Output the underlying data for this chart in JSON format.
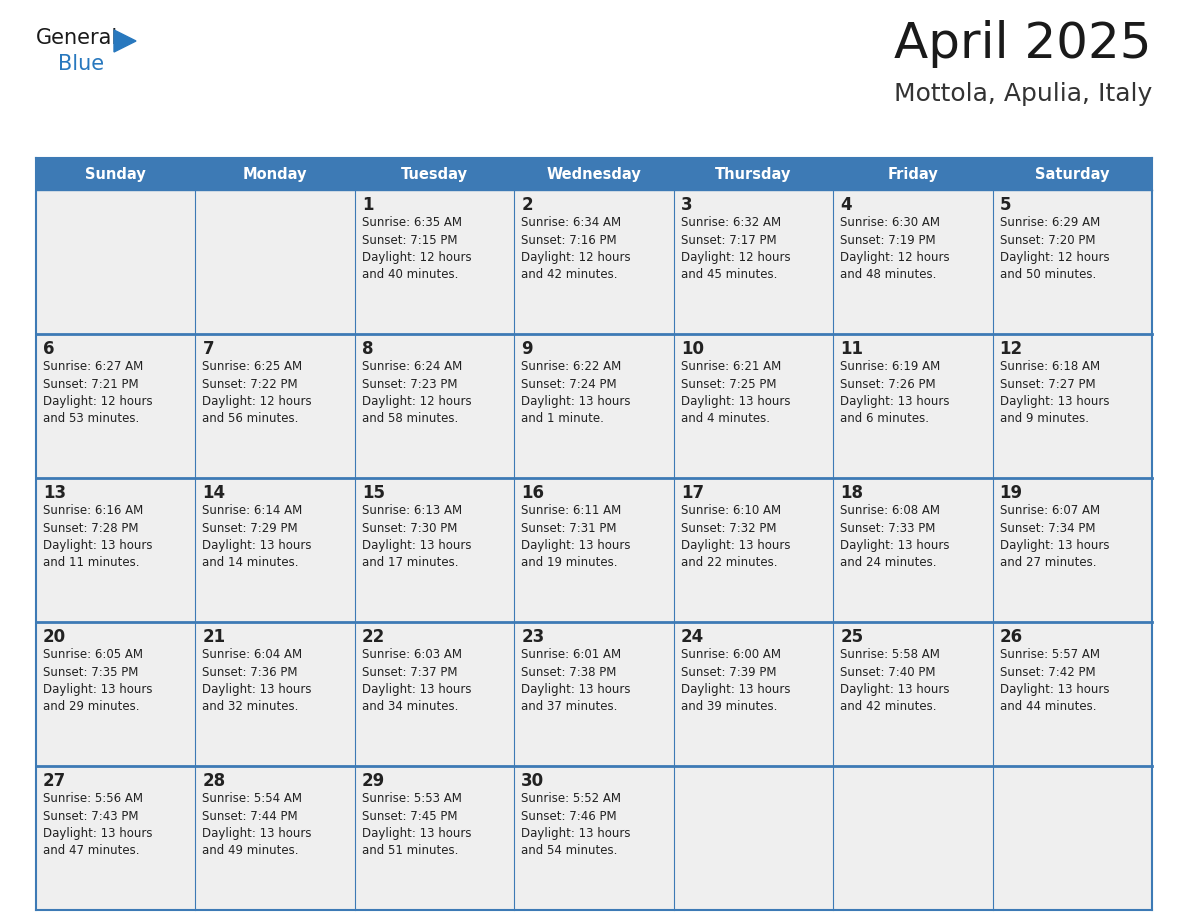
{
  "title": "April 2025",
  "subtitle": "Mottola, Apulia, Italy",
  "days_of_week": [
    "Sunday",
    "Monday",
    "Tuesday",
    "Wednesday",
    "Thursday",
    "Friday",
    "Saturday"
  ],
  "header_bg": "#3d7ab5",
  "header_text_color": "#FFFFFF",
  "cell_bg": "#efefef",
  "cell_border_color": "#3d7ab5",
  "title_color": "#1a1a1a",
  "subtitle_color": "#333333",
  "text_color": "#222222",
  "general_black": "#1a1a1a",
  "general_blue_color": "#2878BE",
  "weeks": [
    [
      {
        "day": "",
        "info": ""
      },
      {
        "day": "",
        "info": ""
      },
      {
        "day": "1",
        "info": "Sunrise: 6:35 AM\nSunset: 7:15 PM\nDaylight: 12 hours\nand 40 minutes."
      },
      {
        "day": "2",
        "info": "Sunrise: 6:34 AM\nSunset: 7:16 PM\nDaylight: 12 hours\nand 42 minutes."
      },
      {
        "day": "3",
        "info": "Sunrise: 6:32 AM\nSunset: 7:17 PM\nDaylight: 12 hours\nand 45 minutes."
      },
      {
        "day": "4",
        "info": "Sunrise: 6:30 AM\nSunset: 7:19 PM\nDaylight: 12 hours\nand 48 minutes."
      },
      {
        "day": "5",
        "info": "Sunrise: 6:29 AM\nSunset: 7:20 PM\nDaylight: 12 hours\nand 50 minutes."
      }
    ],
    [
      {
        "day": "6",
        "info": "Sunrise: 6:27 AM\nSunset: 7:21 PM\nDaylight: 12 hours\nand 53 minutes."
      },
      {
        "day": "7",
        "info": "Sunrise: 6:25 AM\nSunset: 7:22 PM\nDaylight: 12 hours\nand 56 minutes."
      },
      {
        "day": "8",
        "info": "Sunrise: 6:24 AM\nSunset: 7:23 PM\nDaylight: 12 hours\nand 58 minutes."
      },
      {
        "day": "9",
        "info": "Sunrise: 6:22 AM\nSunset: 7:24 PM\nDaylight: 13 hours\nand 1 minute."
      },
      {
        "day": "10",
        "info": "Sunrise: 6:21 AM\nSunset: 7:25 PM\nDaylight: 13 hours\nand 4 minutes."
      },
      {
        "day": "11",
        "info": "Sunrise: 6:19 AM\nSunset: 7:26 PM\nDaylight: 13 hours\nand 6 minutes."
      },
      {
        "day": "12",
        "info": "Sunrise: 6:18 AM\nSunset: 7:27 PM\nDaylight: 13 hours\nand 9 minutes."
      }
    ],
    [
      {
        "day": "13",
        "info": "Sunrise: 6:16 AM\nSunset: 7:28 PM\nDaylight: 13 hours\nand 11 minutes."
      },
      {
        "day": "14",
        "info": "Sunrise: 6:14 AM\nSunset: 7:29 PM\nDaylight: 13 hours\nand 14 minutes."
      },
      {
        "day": "15",
        "info": "Sunrise: 6:13 AM\nSunset: 7:30 PM\nDaylight: 13 hours\nand 17 minutes."
      },
      {
        "day": "16",
        "info": "Sunrise: 6:11 AM\nSunset: 7:31 PM\nDaylight: 13 hours\nand 19 minutes."
      },
      {
        "day": "17",
        "info": "Sunrise: 6:10 AM\nSunset: 7:32 PM\nDaylight: 13 hours\nand 22 minutes."
      },
      {
        "day": "18",
        "info": "Sunrise: 6:08 AM\nSunset: 7:33 PM\nDaylight: 13 hours\nand 24 minutes."
      },
      {
        "day": "19",
        "info": "Sunrise: 6:07 AM\nSunset: 7:34 PM\nDaylight: 13 hours\nand 27 minutes."
      }
    ],
    [
      {
        "day": "20",
        "info": "Sunrise: 6:05 AM\nSunset: 7:35 PM\nDaylight: 13 hours\nand 29 minutes."
      },
      {
        "day": "21",
        "info": "Sunrise: 6:04 AM\nSunset: 7:36 PM\nDaylight: 13 hours\nand 32 minutes."
      },
      {
        "day": "22",
        "info": "Sunrise: 6:03 AM\nSunset: 7:37 PM\nDaylight: 13 hours\nand 34 minutes."
      },
      {
        "day": "23",
        "info": "Sunrise: 6:01 AM\nSunset: 7:38 PM\nDaylight: 13 hours\nand 37 minutes."
      },
      {
        "day": "24",
        "info": "Sunrise: 6:00 AM\nSunset: 7:39 PM\nDaylight: 13 hours\nand 39 minutes."
      },
      {
        "day": "25",
        "info": "Sunrise: 5:58 AM\nSunset: 7:40 PM\nDaylight: 13 hours\nand 42 minutes."
      },
      {
        "day": "26",
        "info": "Sunrise: 5:57 AM\nSunset: 7:42 PM\nDaylight: 13 hours\nand 44 minutes."
      }
    ],
    [
      {
        "day": "27",
        "info": "Sunrise: 5:56 AM\nSunset: 7:43 PM\nDaylight: 13 hours\nand 47 minutes."
      },
      {
        "day": "28",
        "info": "Sunrise: 5:54 AM\nSunset: 7:44 PM\nDaylight: 13 hours\nand 49 minutes."
      },
      {
        "day": "29",
        "info": "Sunrise: 5:53 AM\nSunset: 7:45 PM\nDaylight: 13 hours\nand 51 minutes."
      },
      {
        "day": "30",
        "info": "Sunrise: 5:52 AM\nSunset: 7:46 PM\nDaylight: 13 hours\nand 54 minutes."
      },
      {
        "day": "",
        "info": ""
      },
      {
        "day": "",
        "info": ""
      },
      {
        "day": "",
        "info": ""
      }
    ]
  ]
}
